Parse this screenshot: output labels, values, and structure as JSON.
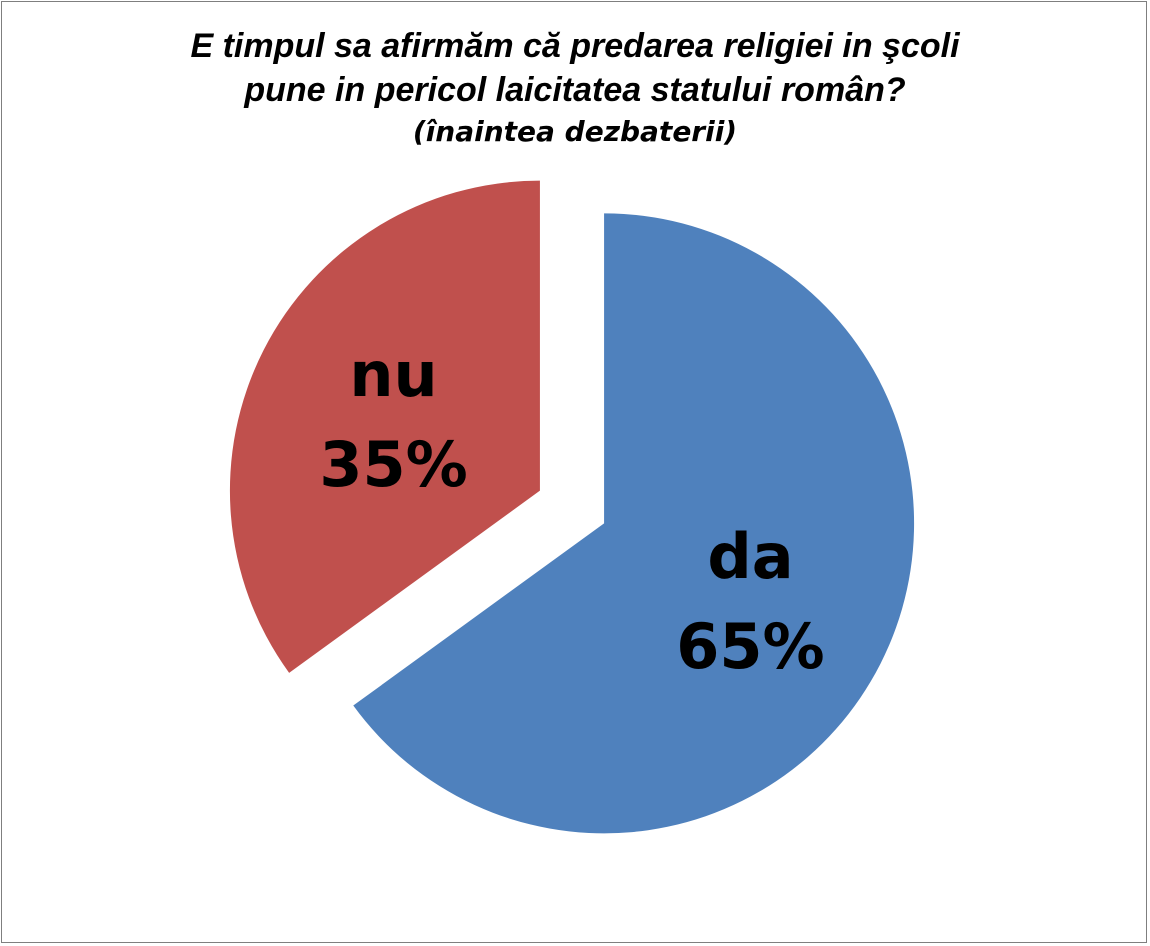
{
  "chart_data": {
    "type": "pie",
    "title_line1": "E timpul sa afirmăm că predarea religiei in şcoli",
    "title_line2": "pune in pericol laicitatea statului român?",
    "subtitle": "(înaintea dezbaterii)",
    "slices": [
      {
        "name": "da",
        "value": 65,
        "value_label": "65%",
        "color": "#4f81bd",
        "exploded": true
      },
      {
        "name": "nu",
        "value": 35,
        "value_label": "35%",
        "color": "#c0504d",
        "exploded": true
      }
    ]
  }
}
